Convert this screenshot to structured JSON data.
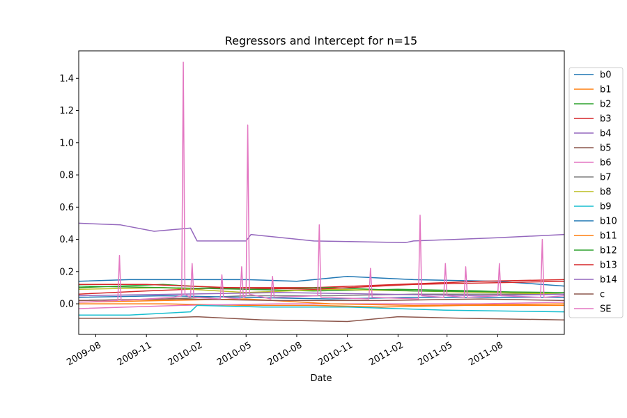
{
  "chart_data": {
    "type": "line",
    "title": "Regressors and Intercept for n=15",
    "xlabel": "Date",
    "ylabel": "",
    "xlim": [
      "2009-07-01",
      "2011-11-30"
    ],
    "ylim": [
      -0.19,
      1.57
    ],
    "grid": false,
    "legend_position": "outside right",
    "y_ticks": [
      "0.0",
      "0.2",
      "0.4",
      "0.6",
      "0.8",
      "1.0",
      "1.2",
      "1.4"
    ],
    "x_tick_dates": [
      "2009-08-01",
      "2009-11-01",
      "2010-02-01",
      "2010-05-01",
      "2010-08-01",
      "2010-11-01",
      "2011-02-01",
      "2011-05-01",
      "2011-08-01"
    ],
    "x_tick_labels": [
      "2009-08",
      "2009-11",
      "2010-02",
      "2010-05",
      "2010-08",
      "2010-11",
      "2011-02",
      "2011-05",
      "2011-08"
    ],
    "series": [
      {
        "name": "b0",
        "color": "#1f77b4",
        "x": [
          "2009-07-01",
          "2009-10-01",
          "2010-01-20",
          "2010-05-01",
          "2010-08-01",
          "2010-11-01",
          "2011-03-01",
          "2011-08-01",
          "2011-11-30"
        ],
        "values": [
          0.14,
          0.15,
          0.15,
          0.15,
          0.14,
          0.17,
          0.15,
          0.14,
          0.11
        ]
      },
      {
        "name": "b1",
        "color": "#ff7f0e",
        "x": [
          "2009-07-01",
          "2009-12-01",
          "2010-05-01",
          "2010-09-01",
          "2011-01-01",
          "2011-06-01",
          "2011-11-30"
        ],
        "values": [
          0.0,
          0.0,
          -0.01,
          -0.01,
          -0.02,
          -0.01,
          -0.01
        ]
      },
      {
        "name": "b2",
        "color": "#2ca02c",
        "x": [
          "2009-07-01",
          "2009-12-01",
          "2010-05-01",
          "2010-09-01",
          "2011-02-01",
          "2011-07-01",
          "2011-11-30"
        ],
        "values": [
          0.1,
          0.12,
          0.09,
          0.08,
          0.09,
          0.08,
          0.06
        ]
      },
      {
        "name": "b3",
        "color": "#d62728",
        "x": [
          "2009-07-01",
          "2009-11-01",
          "2010-04-01",
          "2010-09-01",
          "2011-02-01",
          "2011-07-01",
          "2011-11-30"
        ],
        "values": [
          0.06,
          0.08,
          0.1,
          0.1,
          0.12,
          0.14,
          0.15
        ]
      },
      {
        "name": "b4",
        "color": "#9467bd",
        "x": [
          "2009-07-01",
          "2009-09-15",
          "2009-11-15",
          "2010-01-20",
          "2010-02-01",
          "2010-05-01",
          "2010-05-10",
          "2010-09-01",
          "2011-02-15",
          "2011-03-01",
          "2011-08-01",
          "2011-11-30"
        ],
        "values": [
          0.5,
          0.49,
          0.45,
          0.47,
          0.39,
          0.39,
          0.43,
          0.39,
          0.38,
          0.39,
          0.41,
          0.43
        ]
      },
      {
        "name": "b5",
        "color": "#8c564b",
        "x": [
          "2009-07-01",
          "2009-11-01",
          "2010-02-01",
          "2010-06-01",
          "2010-11-01",
          "2011-02-01",
          "2011-06-01",
          "2011-11-30"
        ],
        "values": [
          -0.09,
          -0.09,
          -0.08,
          -0.1,
          -0.11,
          -0.08,
          -0.09,
          -0.1
        ]
      },
      {
        "name": "b6",
        "color": "#e377c2",
        "x": [
          "2009-07-01",
          "2010-01-01",
          "2010-07-01",
          "2011-01-01",
          "2011-07-01",
          "2011-11-30"
        ],
        "values": [
          -0.03,
          -0.01,
          0.0,
          0.0,
          0.0,
          0.01
        ]
      },
      {
        "name": "b7",
        "color": "#7f7f7f",
        "x": [
          "2009-07-01",
          "2009-12-01",
          "2010-05-01",
          "2010-10-01",
          "2011-03-01",
          "2011-11-30"
        ],
        "values": [
          0.02,
          0.03,
          0.05,
          0.05,
          0.06,
          0.06
        ]
      },
      {
        "name": "b8",
        "color": "#bcbd22",
        "x": [
          "2009-07-01",
          "2009-12-01",
          "2010-05-01",
          "2010-10-01",
          "2011-03-01",
          "2011-11-30"
        ],
        "values": [
          0.09,
          0.1,
          0.07,
          0.09,
          0.08,
          0.06
        ]
      },
      {
        "name": "b9",
        "color": "#17becf",
        "x": [
          "2009-07-01",
          "2009-10-01",
          "2010-01-20",
          "2010-02-01",
          "2010-06-01",
          "2010-11-01",
          "2011-05-01",
          "2011-11-30"
        ],
        "values": [
          -0.07,
          -0.07,
          -0.05,
          -0.01,
          -0.02,
          -0.02,
          -0.04,
          -0.05
        ]
      },
      {
        "name": "b10",
        "color": "#1f77b4",
        "x": [
          "2009-07-01",
          "2009-12-01",
          "2010-05-01",
          "2010-10-01",
          "2011-03-01",
          "2011-11-30"
        ],
        "values": [
          0.04,
          0.05,
          0.04,
          0.03,
          0.04,
          0.04
        ]
      },
      {
        "name": "b11",
        "color": "#ff7f0e",
        "x": [
          "2009-07-01",
          "2009-12-01",
          "2010-05-01",
          "2010-10-01",
          "2011-03-01",
          "2011-11-30"
        ],
        "values": [
          0.01,
          0.02,
          0.03,
          0.0,
          -0.01,
          0.0
        ]
      },
      {
        "name": "b12",
        "color": "#2ca02c",
        "x": [
          "2009-07-01",
          "2009-12-01",
          "2010-05-01",
          "2010-10-01",
          "2011-03-01",
          "2011-11-30"
        ],
        "values": [
          0.11,
          0.1,
          0.09,
          0.1,
          0.08,
          0.07
        ]
      },
      {
        "name": "b13",
        "color": "#d62728",
        "x": [
          "2009-07-01",
          "2009-11-01",
          "2010-04-01",
          "2010-09-01",
          "2011-03-01",
          "2011-11-30"
        ],
        "values": [
          0.12,
          0.12,
          0.1,
          0.09,
          0.12,
          0.14
        ]
      },
      {
        "name": "b14",
        "color": "#9467bd",
        "x": [
          "2009-07-01",
          "2010-01-01",
          "2010-07-01",
          "2011-01-01",
          "2011-07-01",
          "2011-11-30"
        ],
        "values": [
          0.05,
          0.06,
          0.07,
          0.06,
          0.05,
          0.06
        ]
      },
      {
        "name": "c",
        "color": "#8c564b",
        "x": [
          "2009-07-01",
          "2010-01-01",
          "2010-07-01",
          "2011-01-01",
          "2011-07-01",
          "2011-11-30"
        ],
        "values": [
          0.02,
          0.03,
          0.02,
          0.02,
          0.03,
          0.02
        ]
      },
      {
        "name": "SE",
        "color": "#e377c2",
        "x": [
          "2009-07-01",
          "2009-09-10",
          "2009-09-13",
          "2009-09-16",
          "2009-12-20",
          "2010-01-04",
          "2010-01-07",
          "2010-01-10",
          "2010-01-20",
          "2010-01-23",
          "2010-01-26",
          "2010-03-15",
          "2010-03-18",
          "2010-03-21",
          "2010-04-20",
          "2010-04-23",
          "2010-04-26",
          "2010-05-01",
          "2010-05-04",
          "2010-05-07",
          "2010-06-15",
          "2010-06-18",
          "2010-06-21",
          "2010-09-08",
          "2010-09-11",
          "2010-09-14",
          "2010-12-10",
          "2010-12-13",
          "2010-12-16",
          "2011-03-10",
          "2011-03-13",
          "2011-03-16",
          "2011-04-25",
          "2011-04-28",
          "2011-05-01",
          "2011-06-01",
          "2011-06-04",
          "2011-06-07",
          "2011-08-01",
          "2011-08-04",
          "2011-08-07",
          "2011-10-18",
          "2011-10-21",
          "2011-10-24",
          "2011-11-30"
        ],
        "values": [
          0.01,
          0.02,
          0.3,
          0.02,
          0.04,
          0.05,
          1.5,
          0.06,
          0.04,
          0.25,
          0.04,
          0.03,
          0.18,
          0.04,
          0.03,
          0.23,
          0.04,
          0.05,
          1.11,
          0.06,
          0.03,
          0.17,
          0.04,
          0.05,
          0.49,
          0.04,
          0.03,
          0.22,
          0.04,
          0.03,
          0.55,
          0.05,
          0.04,
          0.25,
          0.05,
          0.04,
          0.23,
          0.04,
          0.05,
          0.25,
          0.05,
          0.04,
          0.4,
          0.04,
          0.05
        ]
      }
    ]
  }
}
